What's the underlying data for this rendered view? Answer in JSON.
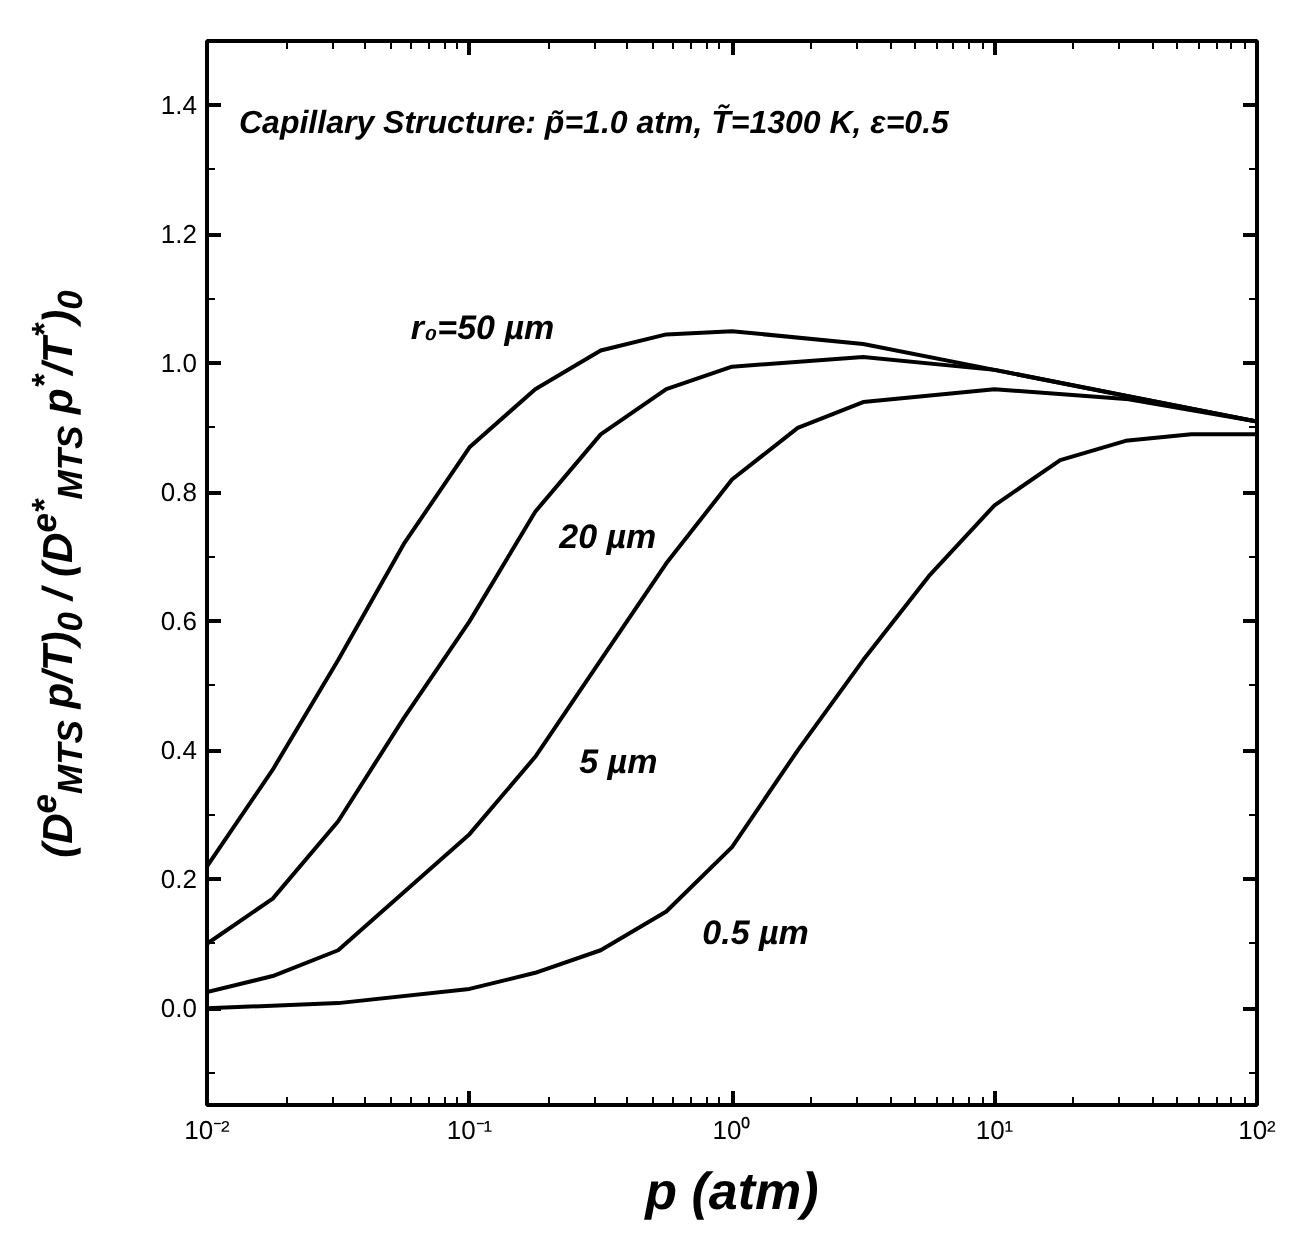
{
  "chart_data": {
    "type": "line",
    "xlabel": "p (atm)",
    "ylabel": "(D$^{e}$$_{MTS}$ p/T)$_{0}$ / (D$^{e*}$$_{MTS}$ p$^{*}$/T$^{*}$)$_{0}$",
    "log": "x",
    "grid": false,
    "legend": false,
    "marker": "none",
    "line_style": "solid",
    "xlim": [
      0.01,
      100
    ],
    "ylim": [
      -0.15,
      1.5
    ],
    "xticks": [
      {
        "value": 0.01,
        "label": "10⁻²"
      },
      {
        "value": 0.1,
        "label": "10⁻¹"
      },
      {
        "value": 1,
        "label": "10⁰"
      },
      {
        "value": 10,
        "label": "10¹"
      },
      {
        "value": 100,
        "label": "10²"
      }
    ],
    "yticks": [
      {
        "value": 0,
        "label": "0.0"
      },
      {
        "value": 0.2,
        "label": "0.2"
      },
      {
        "value": 0.4,
        "label": "0.4"
      },
      {
        "value": 0.6,
        "label": "0.6"
      },
      {
        "value": 0.8,
        "label": "0.8"
      },
      {
        "value": 1,
        "label": "1.0"
      },
      {
        "value": 1.2,
        "label": "1.2"
      },
      {
        "value": 1.4,
        "label": "1.4"
      }
    ],
    "series": [
      {
        "name": "r₀=50 µm",
        "color": "#000000",
        "x": [
          0.01,
          0.0178,
          0.0316,
          0.0562,
          0.1,
          0.178,
          0.316,
          0.562,
          1,
          3.16,
          10,
          31.6,
          100
        ],
        "values": [
          0.22,
          0.37,
          0.54,
          0.72,
          0.87,
          0.96,
          1.02,
          1.045,
          1.05,
          1.03,
          0.99,
          0.95,
          0.91
        ]
      },
      {
        "name": "20 µm",
        "color": "#000000",
        "x": [
          0.01,
          0.0178,
          0.0316,
          0.0562,
          0.1,
          0.178,
          0.316,
          0.562,
          1,
          3.16,
          10,
          31.6,
          100
        ],
        "values": [
          0.1,
          0.17,
          0.29,
          0.45,
          0.6,
          0.77,
          0.89,
          0.96,
          0.995,
          1.01,
          0.99,
          0.95,
          0.91
        ]
      },
      {
        "name": "5 µm",
        "color": "#000000",
        "x": [
          0.01,
          0.0178,
          0.0316,
          0.0562,
          0.1,
          0.178,
          0.316,
          0.562,
          1,
          1.78,
          3.16,
          10,
          31.6,
          100
        ],
        "values": [
          0.025,
          0.05,
          0.09,
          0.18,
          0.27,
          0.39,
          0.54,
          0.69,
          0.82,
          0.9,
          0.94,
          0.96,
          0.945,
          0.91
        ]
      },
      {
        "name": "0.5 µm",
        "color": "#000000",
        "x": [
          0.01,
          0.0316,
          0.1,
          0.178,
          0.316,
          0.562,
          1,
          1.78,
          3.16,
          5.62,
          10,
          17.8,
          31.6,
          56.2,
          100
        ],
        "values": [
          0.0,
          0.008,
          0.03,
          0.055,
          0.09,
          0.15,
          0.25,
          0.4,
          0.54,
          0.67,
          0.78,
          0.85,
          0.88,
          0.89,
          0.89
        ]
      }
    ],
    "annotations": [
      "Capillary Structure: p̃=1.0 atm, T̃=1300 K, ε=0.5"
    ]
  }
}
